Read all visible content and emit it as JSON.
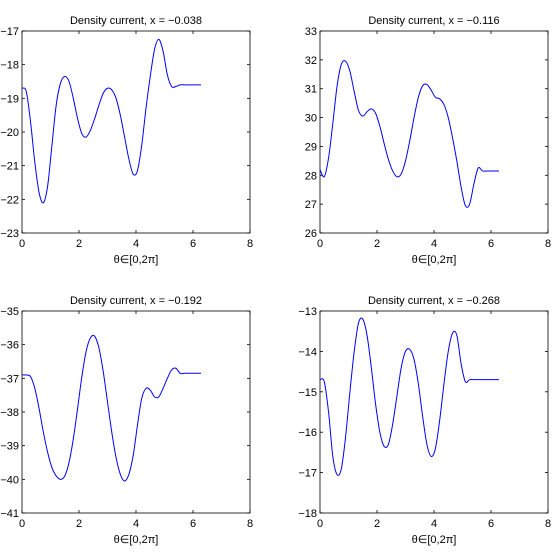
{
  "chart_data": [
    {
      "type": "line",
      "title": "Density current, x = −0.038",
      "xlabel": "θ∈[0,2π]",
      "ylabel": "",
      "xlim": [
        0,
        8
      ],
      "ylim": [
        -23,
        -17
      ],
      "xticks": [
        0,
        2,
        4,
        6,
        8
      ],
      "yticks": [
        -23,
        -22,
        -21,
        -20,
        -19,
        -18,
        -17
      ],
      "line_color": "#0000ff",
      "series": [
        {
          "x": [
            0,
            0.15,
            0.3,
            0.45,
            0.6,
            0.75,
            0.9,
            1.05,
            1.2,
            1.35,
            1.5,
            1.65,
            1.8,
            1.95,
            2.1,
            2.25,
            2.4,
            2.55,
            2.7,
            2.85,
            3.0,
            3.15,
            3.3,
            3.45,
            3.6,
            3.75,
            3.9,
            4.05,
            4.2,
            4.35,
            4.5,
            4.65,
            4.8,
            4.95,
            5.1,
            5.25,
            5.4,
            5.55,
            5.7,
            5.85,
            6.0,
            6.15,
            6.28
          ],
          "y": [
            -18.7,
            -18.8,
            -19.7,
            -20.9,
            -21.8,
            -22.1,
            -21.6,
            -20.4,
            -19.2,
            -18.55,
            -18.35,
            -18.5,
            -19.0,
            -19.6,
            -20.05,
            -20.15,
            -19.95,
            -19.6,
            -19.2,
            -18.85,
            -18.7,
            -18.75,
            -19.0,
            -19.5,
            -20.15,
            -20.8,
            -21.25,
            -21.15,
            -20.4,
            -19.3,
            -18.35,
            -17.55,
            -17.25,
            -17.6,
            -18.3,
            -18.65,
            -18.65,
            -18.6,
            -18.6,
            -18.6,
            -18.6,
            -18.6,
            -18.6
          ]
        }
      ]
    },
    {
      "type": "line",
      "title": "Density current, x = −0.116",
      "xlabel": "θ∈[0,2π]",
      "ylabel": "",
      "xlim": [
        0,
        8
      ],
      "ylim": [
        26,
        33
      ],
      "xticks": [
        0,
        2,
        4,
        6,
        8
      ],
      "yticks": [
        26,
        27,
        28,
        29,
        30,
        31,
        32,
        33
      ],
      "line_color": "#0000ff",
      "series": [
        {
          "x": [
            0,
            0.15,
            0.3,
            0.45,
            0.6,
            0.75,
            0.9,
            1.05,
            1.2,
            1.35,
            1.5,
            1.65,
            1.8,
            1.95,
            2.1,
            2.25,
            2.4,
            2.55,
            2.7,
            2.85,
            3.0,
            3.15,
            3.3,
            3.45,
            3.6,
            3.75,
            3.9,
            4.05,
            4.2,
            4.35,
            4.5,
            4.65,
            4.8,
            4.95,
            5.1,
            5.25,
            5.4,
            5.55,
            5.7,
            5.85,
            6.0,
            6.15,
            6.28
          ],
          "y": [
            28.2,
            27.95,
            28.6,
            29.8,
            31.1,
            31.85,
            31.95,
            31.6,
            30.9,
            30.25,
            30.05,
            30.2,
            30.3,
            30.15,
            29.7,
            29.1,
            28.55,
            28.15,
            27.95,
            28.05,
            28.5,
            29.2,
            30.0,
            30.7,
            31.1,
            31.15,
            30.95,
            30.7,
            30.65,
            30.45,
            30.0,
            29.3,
            28.5,
            27.6,
            26.95,
            27.0,
            27.7,
            28.25,
            28.15,
            28.15,
            28.15,
            28.15,
            28.15
          ]
        }
      ]
    },
    {
      "type": "line",
      "title": "Density current, x = −0.192",
      "xlabel": "θ∈[0,2π]",
      "ylabel": "",
      "xlim": [
        0,
        8
      ],
      "ylim": [
        -41,
        -35
      ],
      "xticks": [
        0,
        2,
        4,
        6,
        8
      ],
      "yticks": [
        -41,
        -40,
        -39,
        -38,
        -37,
        -36,
        -35
      ],
      "line_color": "#0000ff",
      "series": [
        {
          "x": [
            0,
            0.15,
            0.3,
            0.45,
            0.6,
            0.75,
            0.9,
            1.05,
            1.2,
            1.35,
            1.5,
            1.65,
            1.8,
            1.95,
            2.1,
            2.25,
            2.4,
            2.55,
            2.7,
            2.85,
            3.0,
            3.15,
            3.3,
            3.45,
            3.6,
            3.75,
            3.9,
            4.05,
            4.2,
            4.35,
            4.5,
            4.65,
            4.8,
            4.95,
            5.1,
            5.25,
            5.4,
            5.55,
            5.7,
            5.85,
            6.0,
            6.15,
            6.28
          ],
          "y": [
            -36.9,
            -36.9,
            -36.95,
            -37.3,
            -37.9,
            -38.6,
            -39.2,
            -39.65,
            -39.9,
            -40.0,
            -39.9,
            -39.5,
            -38.8,
            -37.9,
            -36.95,
            -36.2,
            -35.8,
            -35.75,
            -36.1,
            -36.8,
            -37.7,
            -38.6,
            -39.35,
            -39.85,
            -40.05,
            -39.85,
            -39.3,
            -38.4,
            -37.6,
            -37.3,
            -37.35,
            -37.55,
            -37.55,
            -37.3,
            -37.0,
            -36.75,
            -36.7,
            -36.85,
            -36.85,
            -36.85,
            -36.85,
            -36.85,
            -36.85
          ]
        }
      ]
    },
    {
      "type": "line",
      "title": "Density current, x = −0.268",
      "xlabel": "θ∈[0,2π]",
      "ylabel": "",
      "xlim": [
        0,
        8
      ],
      "ylim": [
        -18,
        -13
      ],
      "xticks": [
        0,
        2,
        4,
        6,
        8
      ],
      "yticks": [
        -18,
        -17,
        -16,
        -15,
        -14,
        -13
      ],
      "line_color": "#0000ff",
      "series": [
        {
          "x": [
            0,
            0.15,
            0.3,
            0.45,
            0.6,
            0.75,
            0.9,
            1.05,
            1.2,
            1.35,
            1.5,
            1.65,
            1.8,
            1.95,
            2.1,
            2.25,
            2.4,
            2.55,
            2.7,
            2.85,
            3.0,
            3.15,
            3.3,
            3.45,
            3.6,
            3.75,
            3.9,
            4.05,
            4.2,
            4.35,
            4.5,
            4.65,
            4.8,
            4.95,
            5.1,
            5.25,
            5.4,
            5.55,
            5.7,
            5.85,
            6.0,
            6.15,
            6.28
          ],
          "y": [
            -14.7,
            -14.75,
            -15.5,
            -16.6,
            -17.05,
            -16.9,
            -16.1,
            -15.0,
            -14.0,
            -13.3,
            -13.2,
            -13.6,
            -14.4,
            -15.3,
            -16.0,
            -16.35,
            -16.3,
            -15.8,
            -15.1,
            -14.4,
            -14.0,
            -13.95,
            -14.2,
            -14.8,
            -15.6,
            -16.3,
            -16.6,
            -16.4,
            -15.7,
            -14.8,
            -14.0,
            -13.55,
            -13.6,
            -14.3,
            -14.75,
            -14.7,
            -14.7,
            -14.7,
            -14.7,
            -14.7,
            -14.7,
            -14.7,
            -14.7
          ]
        }
      ]
    }
  ]
}
